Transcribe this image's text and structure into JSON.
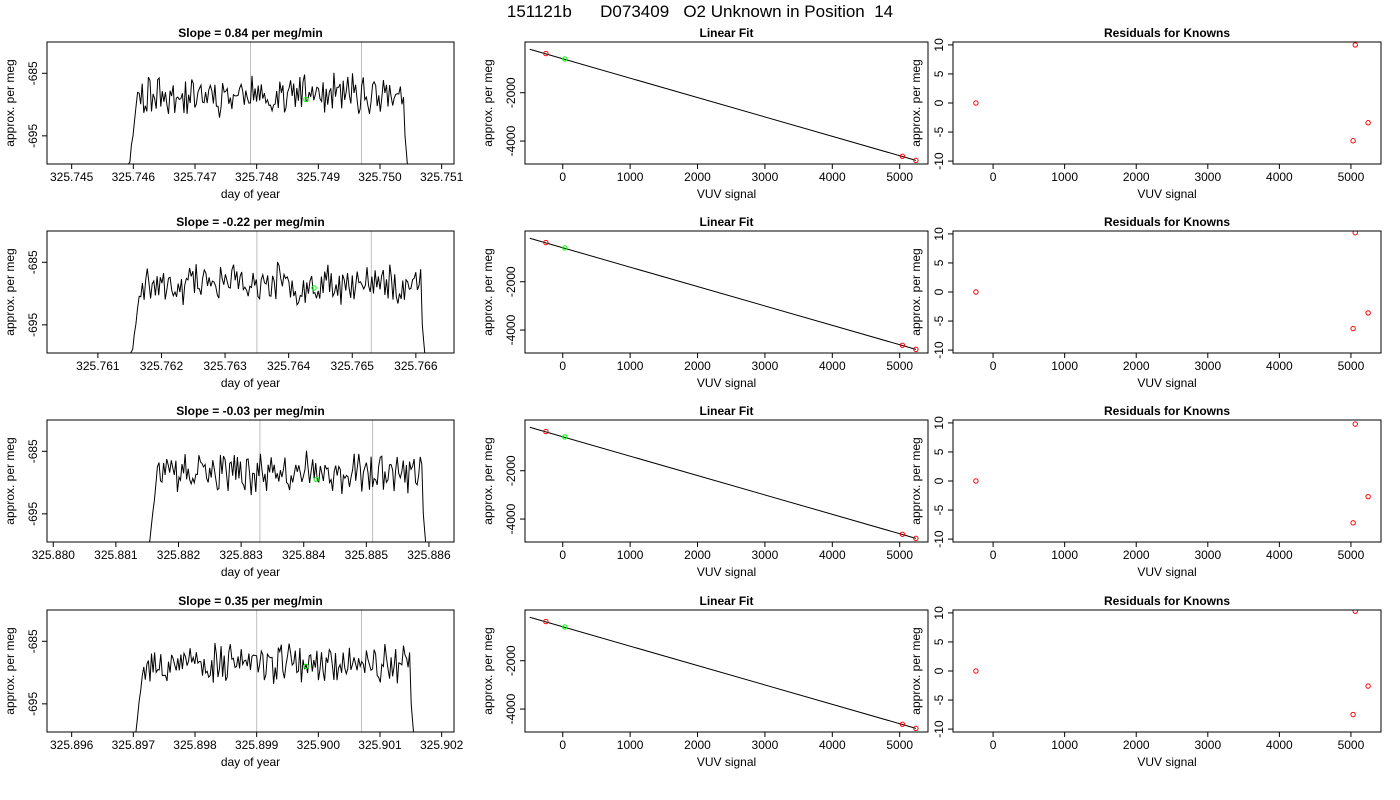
{
  "title": {
    "run": "151121b",
    "tank": "D073409",
    "description": "O2 Unknown in Position  14"
  },
  "colors": {
    "trace": "#000000",
    "marker_unknown": "#00ff00",
    "marker_known": "#ff0000",
    "window_line": "#bfbfbf",
    "fit_line": "#000000"
  },
  "chart_data": [
    {
      "row": 1,
      "type": "line",
      "title": "Slope =  0.84  per meg/min",
      "xlabel": "day of year",
      "ylabel": "approx. per meg",
      "xlim": [
        325.7446,
        325.7512
      ],
      "ylim": [
        -699.5,
        -680
      ],
      "xticks": [
        325.745,
        325.746,
        325.747,
        325.748,
        325.749,
        325.75,
        325.751
      ],
      "xtick_labels": [
        "325.745",
        "325.746",
        "325.747",
        "325.748",
        "325.749",
        "325.750",
        "325.751"
      ],
      "yticks": [
        -685,
        -695
      ],
      "ytick_labels": [
        "-685",
        "-695"
      ],
      "window": [
        325.7479,
        325.7497
      ],
      "trace_start": 325.7458,
      "trace_end": 325.7506,
      "mean_point": {
        "x": 325.7488,
        "y": -689.2
      },
      "seed": 11
    },
    {
      "type": "line",
      "row": 1,
      "title": "Linear Fit",
      "xlabel": "VUV signal",
      "ylabel": "approx. per meg",
      "xlim": [
        -560,
        5420
      ],
      "ylim": [
        -4950,
        100
      ],
      "xticks": [
        0,
        1000,
        2000,
        3000,
        4000,
        5000
      ],
      "xtick_labels": [
        "0",
        "1000",
        "2000",
        "3000",
        "4000",
        "5000"
      ],
      "yticks": [
        -2000,
        -4000
      ],
      "ytick_labels": [
        "-2000",
        "-4000"
      ],
      "fit_line": [
        [
          -490,
          -200
        ],
        [
          5240,
          -4800
        ]
      ],
      "knowns": [
        {
          "x": -250,
          "y": -380
        },
        {
          "x": 5040,
          "y": -4630
        },
        {
          "x": 5240,
          "y": -4800
        }
      ],
      "unknown": {
        "x": 30,
        "y": -600
      }
    },
    {
      "type": "scatter",
      "row": 1,
      "title": "Residuals for Knowns",
      "xlabel": "VUV signal",
      "ylabel": "approx. per meg",
      "xlim": [
        -560,
        5420
      ],
      "ylim": [
        -10.5,
        10.5
      ],
      "xticks": [
        0,
        1000,
        2000,
        3000,
        4000,
        5000
      ],
      "xtick_labels": [
        "0",
        "1000",
        "2000",
        "3000",
        "4000",
        "5000"
      ],
      "yticks": [
        10,
        5,
        0,
        -5,
        -10
      ],
      "ytick_labels": [
        "10",
        "5",
        "0",
        "-5",
        "-10"
      ],
      "points": [
        {
          "x": -240,
          "y": 0
        },
        {
          "x": 5030,
          "y": -6.5
        },
        {
          "x": 5060,
          "y": 10
        },
        {
          "x": 5240,
          "y": -3.4
        }
      ]
    },
    {
      "row": 2,
      "type": "line",
      "title": "Slope =  -0.22  per meg/min",
      "xlabel": "day of year",
      "ylabel": "approx. per meg",
      "xlim": [
        325.7602,
        325.7666
      ],
      "ylim": [
        -699.5,
        -680
      ],
      "xticks": [
        325.761,
        325.762,
        325.763,
        325.764,
        325.765,
        325.766
      ],
      "xtick_labels": [
        "325.761",
        "325.762",
        "325.763",
        "325.764",
        "325.765",
        "325.766"
      ],
      "yticks": [
        -685,
        -695
      ],
      "ytick_labels": [
        "-685",
        "-695"
      ],
      "window": [
        325.7635,
        325.7653
      ],
      "trace_start": 325.7614,
      "trace_end": 325.7663,
      "mean_point": {
        "x": 325.7644,
        "y": -689.1
      },
      "seed": 23
    },
    {
      "type": "line",
      "row": 2,
      "title": "Linear Fit",
      "xlabel": "VUV signal",
      "ylabel": "approx. per meg",
      "xlim": [
        -560,
        5420
      ],
      "ylim": [
        -4950,
        100
      ],
      "xticks": [
        0,
        1000,
        2000,
        3000,
        4000,
        5000
      ],
      "xtick_labels": [
        "0",
        "1000",
        "2000",
        "3000",
        "4000",
        "5000"
      ],
      "yticks": [
        -2000,
        -4000
      ],
      "ytick_labels": [
        "-2000",
        "-4000"
      ],
      "fit_line": [
        [
          -490,
          -200
        ],
        [
          5240,
          -4800
        ]
      ],
      "knowns": [
        {
          "x": -250,
          "y": -380
        },
        {
          "x": 5040,
          "y": -4630
        },
        {
          "x": 5240,
          "y": -4800
        }
      ],
      "unknown": {
        "x": 30,
        "y": -600
      }
    },
    {
      "type": "scatter",
      "row": 2,
      "title": "Residuals for Knowns",
      "xlabel": "VUV signal",
      "ylabel": "approx. per meg",
      "xlim": [
        -560,
        5420
      ],
      "ylim": [
        -10.5,
        10.5
      ],
      "xticks": [
        0,
        1000,
        2000,
        3000,
        4000,
        5000
      ],
      "xtick_labels": [
        "0",
        "1000",
        "2000",
        "3000",
        "4000",
        "5000"
      ],
      "yticks": [
        10,
        5,
        0,
        -5,
        -10
      ],
      "ytick_labels": [
        "10",
        "5",
        "0",
        "-5",
        "-10"
      ],
      "points": [
        {
          "x": -240,
          "y": 0
        },
        {
          "x": 5030,
          "y": -6.3
        },
        {
          "x": 5060,
          "y": 10.2
        },
        {
          "x": 5240,
          "y": -3.6
        }
      ]
    },
    {
      "row": 3,
      "type": "line",
      "title": "Slope =  -0.03  per meg/min",
      "xlabel": "day of year",
      "ylabel": "approx. per meg",
      "xlim": [
        325.8799,
        325.8864
      ],
      "ylim": [
        -699.5,
        -680
      ],
      "xticks": [
        325.88,
        325.881,
        325.882,
        325.883,
        325.884,
        325.885,
        325.886
      ],
      "xtick_labels": [
        "325.880",
        "325.881",
        "325.882",
        "325.883",
        "325.884",
        "325.885",
        "325.886"
      ],
      "yticks": [
        -685,
        -695
      ],
      "ytick_labels": [
        "-685",
        "-695"
      ],
      "window": [
        325.8833,
        325.8851
      ],
      "trace_start": 325.8814,
      "trace_end": 325.8861,
      "mean_point": {
        "x": 325.8842,
        "y": -689.5
      },
      "seed": 37
    },
    {
      "type": "line",
      "row": 3,
      "title": "Linear Fit",
      "xlabel": "VUV signal",
      "ylabel": "approx. per meg",
      "xlim": [
        -560,
        5420
      ],
      "ylim": [
        -4950,
        100
      ],
      "xticks": [
        0,
        1000,
        2000,
        3000,
        4000,
        5000
      ],
      "xtick_labels": [
        "0",
        "1000",
        "2000",
        "3000",
        "4000",
        "5000"
      ],
      "yticks": [
        -2000,
        -4000
      ],
      "ytick_labels": [
        "-2000",
        "-4000"
      ],
      "fit_line": [
        [
          -490,
          -200
        ],
        [
          5240,
          -4800
        ]
      ],
      "knowns": [
        {
          "x": -250,
          "y": -380
        },
        {
          "x": 5040,
          "y": -4630
        },
        {
          "x": 5240,
          "y": -4800
        }
      ],
      "unknown": {
        "x": 30,
        "y": -600
      }
    },
    {
      "type": "scatter",
      "row": 3,
      "title": "Residuals for Knowns",
      "xlabel": "VUV signal",
      "ylabel": "approx. per meg",
      "xlim": [
        -560,
        5420
      ],
      "ylim": [
        -10.5,
        10.5
      ],
      "xticks": [
        0,
        1000,
        2000,
        3000,
        4000,
        5000
      ],
      "xtick_labels": [
        "0",
        "1000",
        "2000",
        "3000",
        "4000",
        "5000"
      ],
      "yticks": [
        10,
        5,
        0,
        -5,
        -10
      ],
      "ytick_labels": [
        "10",
        "5",
        "0",
        "-5",
        "-10"
      ],
      "points": [
        {
          "x": -240,
          "y": 0
        },
        {
          "x": 5030,
          "y": -7.2
        },
        {
          "x": 5060,
          "y": 9.8
        },
        {
          "x": 5240,
          "y": -2.7
        }
      ]
    },
    {
      "row": 4,
      "type": "line",
      "title": "Slope =  0.35  per meg/min",
      "xlabel": "day of year",
      "ylabel": "approx. per meg",
      "xlim": [
        325.8956,
        325.9022
      ],
      "ylim": [
        -699.5,
        -680
      ],
      "xticks": [
        325.896,
        325.897,
        325.898,
        325.899,
        325.9,
        325.901,
        325.902
      ],
      "xtick_labels": [
        "325.896",
        "325.897",
        "325.898",
        "325.899",
        "325.900",
        "325.901",
        "325.902"
      ],
      "yticks": [
        -685,
        -695
      ],
      "ytick_labels": [
        "-685",
        "-695"
      ],
      "window": [
        325.899,
        325.9007
      ],
      "trace_start": 325.8969,
      "trace_end": 325.9017,
      "mean_point": {
        "x": 325.8998,
        "y": -689.0
      },
      "seed": 53
    },
    {
      "type": "line",
      "row": 4,
      "title": "Linear Fit",
      "xlabel": "VUV signal",
      "ylabel": "approx. per meg",
      "xlim": [
        -560,
        5420
      ],
      "ylim": [
        -4950,
        100
      ],
      "xticks": [
        0,
        1000,
        2000,
        3000,
        4000,
        5000
      ],
      "xtick_labels": [
        "0",
        "1000",
        "2000",
        "3000",
        "4000",
        "5000"
      ],
      "yticks": [
        -2000,
        -4000
      ],
      "ytick_labels": [
        "-2000",
        "-4000"
      ],
      "fit_line": [
        [
          -490,
          -200
        ],
        [
          5240,
          -4800
        ]
      ],
      "knowns": [
        {
          "x": -250,
          "y": -380
        },
        {
          "x": 5040,
          "y": -4630
        },
        {
          "x": 5240,
          "y": -4800
        }
      ],
      "unknown": {
        "x": 30,
        "y": -600
      }
    },
    {
      "type": "scatter",
      "row": 4,
      "title": "Residuals for Knowns",
      "xlabel": "VUV signal",
      "ylabel": "approx. per meg",
      "xlim": [
        -560,
        5420
      ],
      "ylim": [
        -10.5,
        10.5
      ],
      "xticks": [
        0,
        1000,
        2000,
        3000,
        4000,
        5000
      ],
      "xtick_labels": [
        "0",
        "1000",
        "2000",
        "3000",
        "4000",
        "5000"
      ],
      "yticks": [
        10,
        5,
        0,
        -5,
        -10
      ],
      "ytick_labels": [
        "10",
        "5",
        "0",
        "-5",
        "-10"
      ],
      "points": [
        {
          "x": -240,
          "y": 0
        },
        {
          "x": 5030,
          "y": -7.5
        },
        {
          "x": 5060,
          "y": 10.3
        },
        {
          "x": 5240,
          "y": -2.6
        }
      ]
    }
  ]
}
